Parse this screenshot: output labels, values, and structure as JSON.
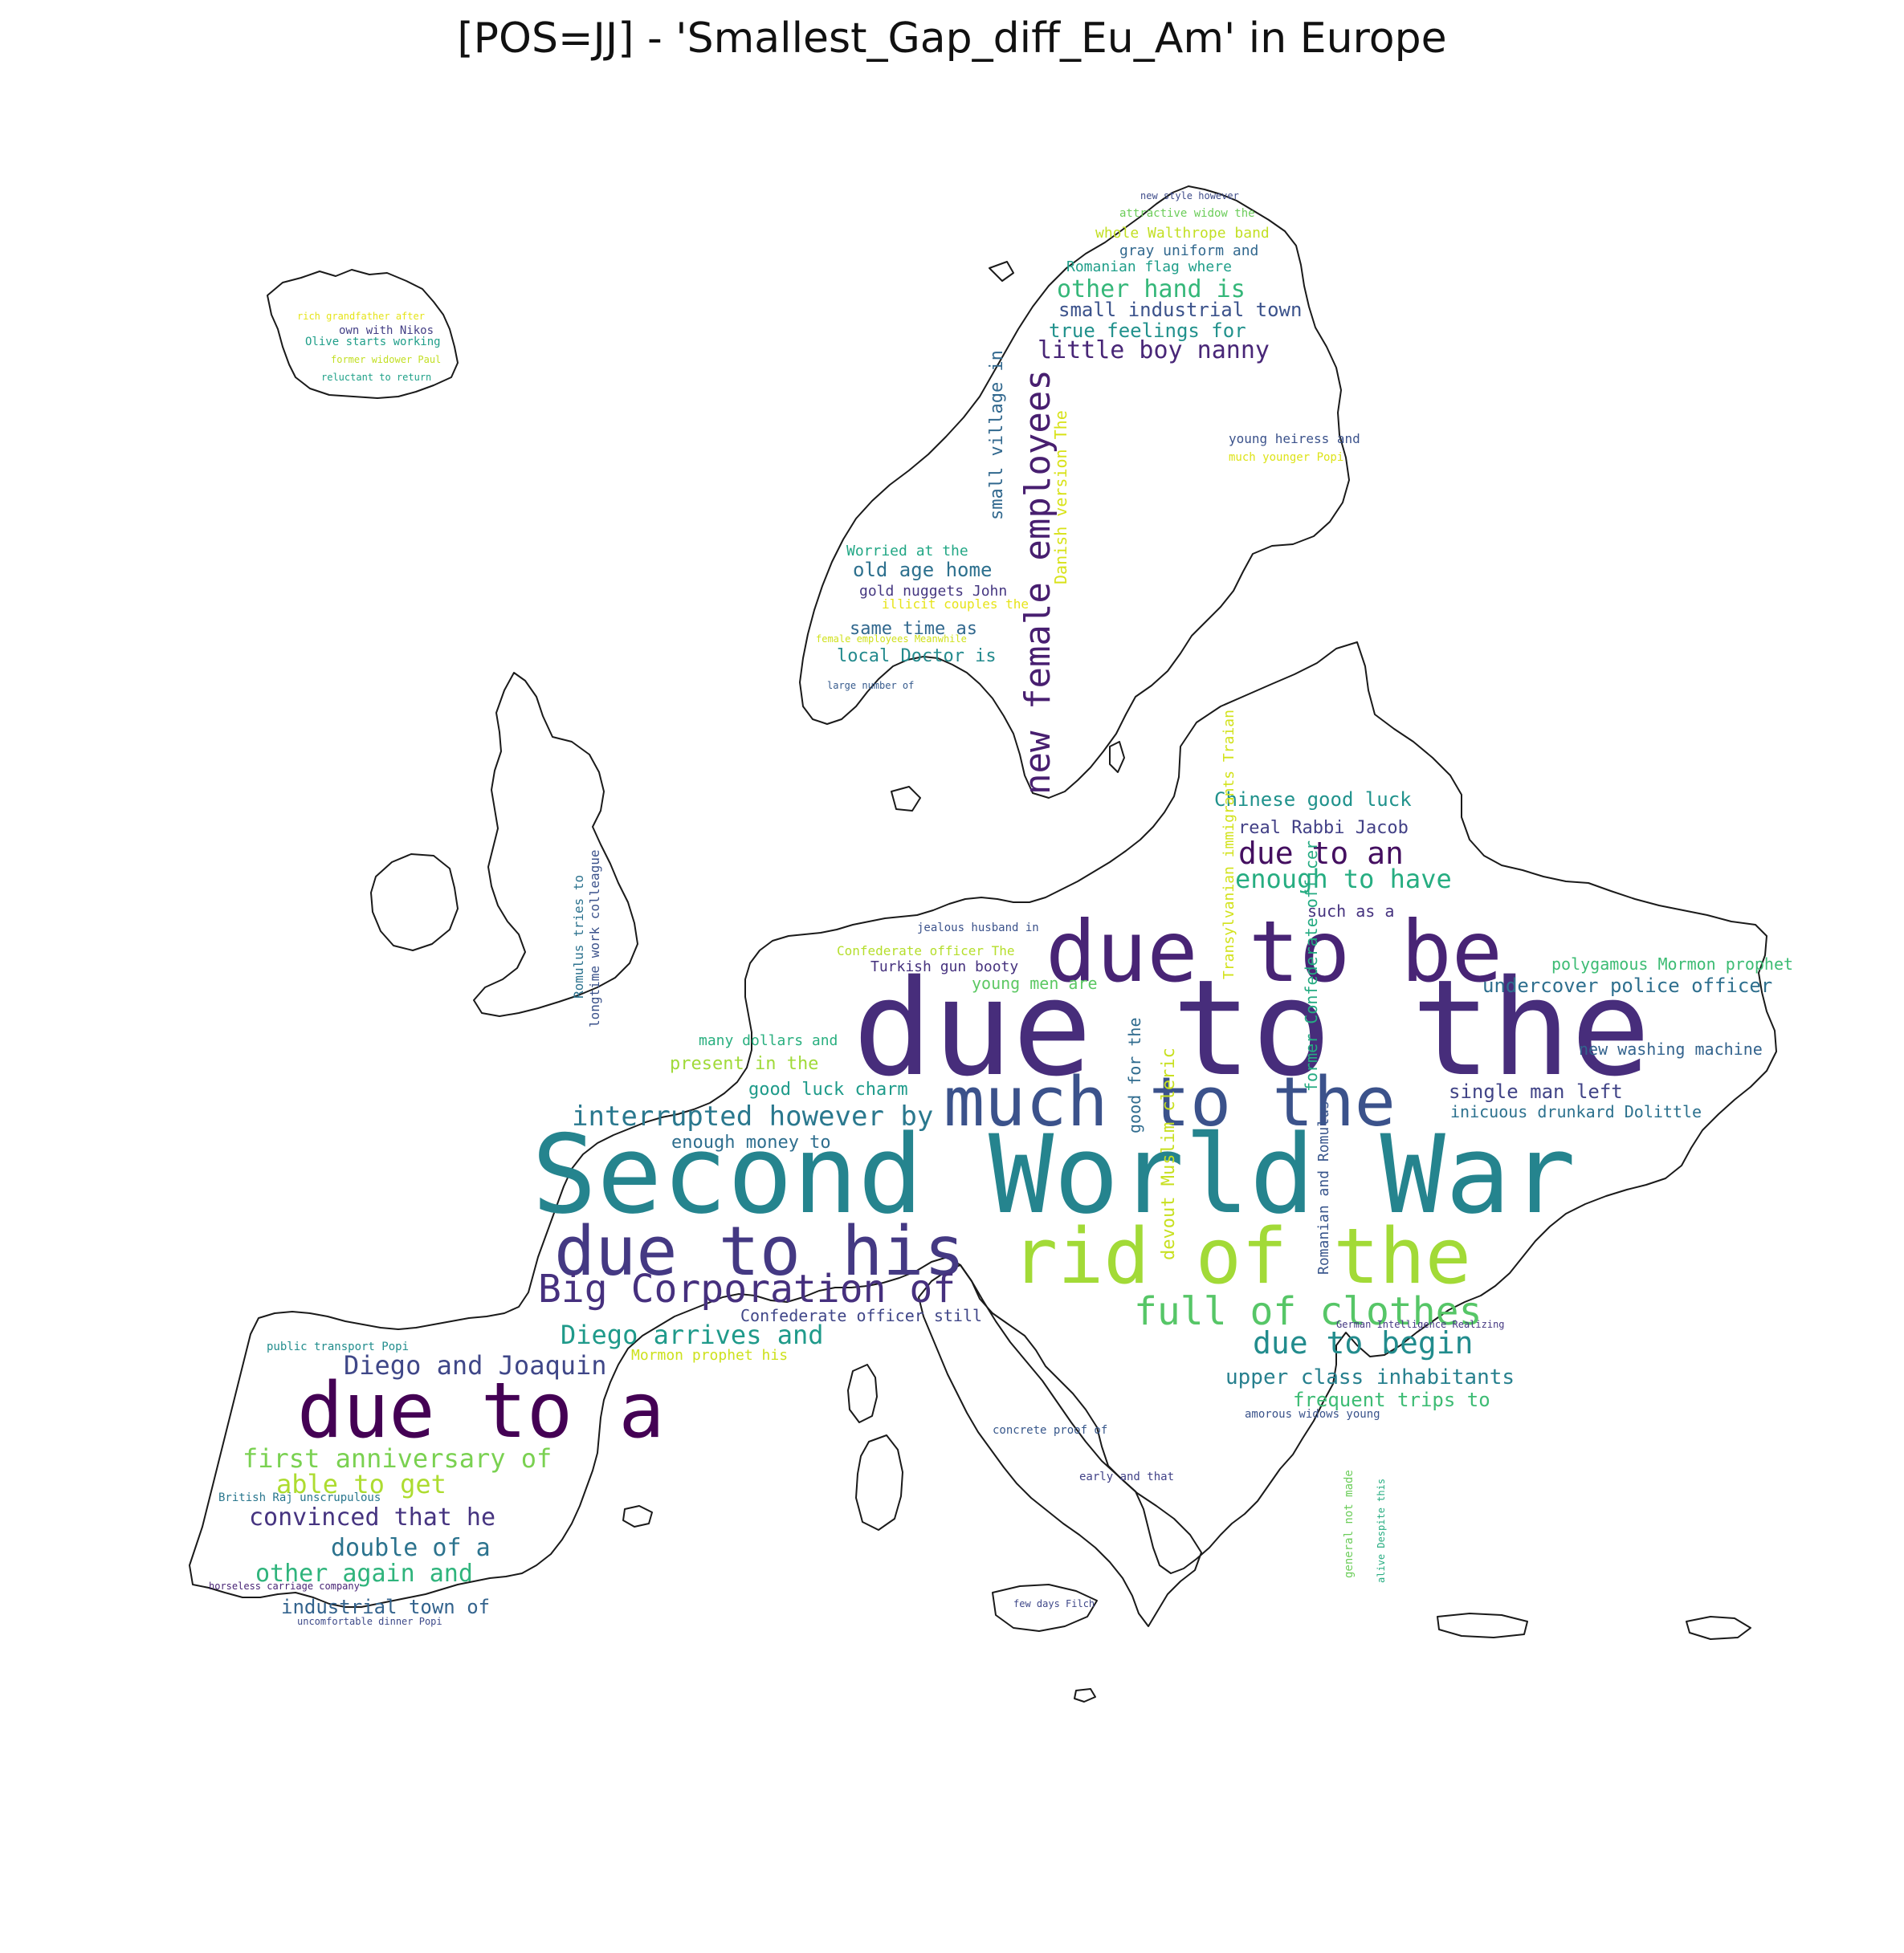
{
  "title": "[POS=JJ] - 'Smallest_Gap_diff_Eu_Am' in Europe",
  "palette": [
    "#440154",
    "#482878",
    "#3e4989",
    "#31688e",
    "#26828e",
    "#1f9e89",
    "#35b779",
    "#6ece58",
    "#b5de2b",
    "#fde725"
  ],
  "words": [
    {
      "text": "due to the",
      "color": "#472d7b"
    },
    {
      "text": "Second World War",
      "color": "#25848e"
    },
    {
      "text": "due to be",
      "color": "#482475"
    },
    {
      "text": "much to the",
      "color": "#3b528b"
    },
    {
      "text": "due to his",
      "color": "#443983"
    },
    {
      "text": "rid of the",
      "color": "#a2da37"
    },
    {
      "text": "due to a",
      "color": "#440154"
    },
    {
      "text": "Big Corporation of",
      "color": "#46307e"
    },
    {
      "text": "full of clothes",
      "color": "#56c667"
    },
    {
      "text": "new female employees",
      "color": "#481f70"
    },
    {
      "text": "interrupted however by",
      "color": "#2a788e"
    },
    {
      "text": "Diego arrives and",
      "color": "#1f9a8a"
    },
    {
      "text": "Diego and Joaquin",
      "color": "#3f4788"
    },
    {
      "text": "due to begin",
      "color": "#228c8d"
    },
    {
      "text": "due to an",
      "color": "#440f60"
    },
    {
      "text": "enough to have",
      "color": "#26ad81"
    },
    {
      "text": "first anniversary of",
      "color": "#7ad151"
    },
    {
      "text": "able to get",
      "color": "#addc30"
    },
    {
      "text": "convinced that he",
      "color": "#463480"
    },
    {
      "text": "double of a",
      "color": "#2c738e"
    },
    {
      "text": "other again and",
      "color": "#2fb47c"
    },
    {
      "text": "industrial town of",
      "color": "#33638d"
    },
    {
      "text": "little boy nanny",
      "color": "#482677"
    },
    {
      "text": "other hand is",
      "color": "#35b779"
    },
    {
      "text": "small industrial town",
      "color": "#3b528b"
    },
    {
      "text": "true feelings for",
      "color": "#21918c"
    },
    {
      "text": "old age home",
      "color": "#2d708e"
    },
    {
      "text": "local Doctor is",
      "color": "#238a8d"
    },
    {
      "text": "same time as",
      "color": "#31688e"
    },
    {
      "text": "Chinese good luck",
      "color": "#20928c"
    },
    {
      "text": "real Rabbi Jacob",
      "color": "#424086"
    },
    {
      "text": "undercover police officer",
      "color": "#2e6f8e"
    },
    {
      "text": "single man left",
      "color": "#414487"
    },
    {
      "text": "upper class inhabitants",
      "color": "#27808e"
    },
    {
      "text": "frequent trips to",
      "color": "#3dbc74"
    },
    {
      "text": "good luck charm",
      "color": "#1e9b8a"
    },
    {
      "text": "enough money to",
      "color": "#2e6e8e"
    },
    {
      "text": "present in the",
      "color": "#a0da39"
    },
    {
      "text": "polygamous Mormon prophet",
      "color": "#3dbc74"
    },
    {
      "text": "new washing machine",
      "color": "#33638d"
    },
    {
      "text": "inicuous drunkard Dolittle",
      "color": "#2c718e"
    },
    {
      "text": "Danish version The",
      "color": "#d8e219"
    },
    {
      "text": "small village in",
      "color": "#31688e"
    },
    {
      "text": "Transylvanian immigrants Traian",
      "color": "#d2e21b"
    },
    {
      "text": "former Confederate officer",
      "color": "#25ab82"
    },
    {
      "text": "Romanian and Romulus",
      "color": "#39568c"
    },
    {
      "text": "devout Muslim cleric",
      "color": "#c8e020"
    },
    {
      "text": "good for the",
      "color": "#2f6b8e"
    },
    {
      "text": "Confederate officer still",
      "color": "#404688"
    },
    {
      "text": "Mormon prophet his",
      "color": "#cde11d"
    },
    {
      "text": "whole Walthrope band",
      "color": "#c2df23"
    },
    {
      "text": "gray uniform and",
      "color": "#31688e"
    },
    {
      "text": "Romanian flag where",
      "color": "#1f9e89"
    },
    {
      "text": "attractive widow the",
      "color": "#6ccd5a"
    },
    {
      "text": "new style however",
      "color": "#3e4c8a"
    },
    {
      "text": "Worried at the",
      "color": "#22a785"
    },
    {
      "text": "gold nuggets John",
      "color": "#453781"
    },
    {
      "text": "illicit couples the",
      "color": "#e7e419"
    },
    {
      "text": "female employees Meanwhile",
      "color": "#d0e11c"
    },
    {
      "text": "large number of",
      "color": "#375b8d"
    },
    {
      "text": "young men are",
      "color": "#5cc863"
    },
    {
      "text": "Turkish gun booty",
      "color": "#46327e"
    },
    {
      "text": "Confederate officer The",
      "color": "#b5de2b"
    },
    {
      "text": "jealous husband in",
      "color": "#3b528b"
    },
    {
      "text": "many dollars and",
      "color": "#29af7f"
    },
    {
      "text": "such as a",
      "color": "#46337f"
    },
    {
      "text": "Romulus tries to",
      "color": "#2c728e"
    },
    {
      "text": "longtime work colleague",
      "color": "#3b528b"
    },
    {
      "text": "young heiress and",
      "color": "#3b528b"
    },
    {
      "text": "much younger Popi",
      "color": "#dde318"
    },
    {
      "text": "Olive starts working",
      "color": "#1f9e89"
    },
    {
      "text": "own with Nikos",
      "color": "#433e85"
    },
    {
      "text": "former widower Paul",
      "color": "#c2df23"
    },
    {
      "text": "reluctant to return",
      "color": "#1fa188"
    },
    {
      "text": "rich grandfather after",
      "color": "#e5e419"
    },
    {
      "text": "public transport Popi",
      "color": "#228d8d"
    },
    {
      "text": "British Raj unscrupulous",
      "color": "#2a778e"
    },
    {
      "text": "horseless carriage company",
      "color": "#482475"
    },
    {
      "text": "uncomfortable dinner Popi",
      "color": "#3e4a89"
    },
    {
      "text": "German Intelligence Realizing",
      "color": "#453882"
    },
    {
      "text": "amorous widows young",
      "color": "#3a538b"
    },
    {
      "text": "general not made",
      "color": "#6ccd5a"
    },
    {
      "text": "alive Despite this",
      "color": "#27ad81"
    },
    {
      "text": "few days Filch",
      "color": "#3f4889"
    },
    {
      "text": "concrete proof of",
      "color": "#38588c"
    },
    {
      "text": "early and that",
      "color": "#414287"
    }
  ]
}
